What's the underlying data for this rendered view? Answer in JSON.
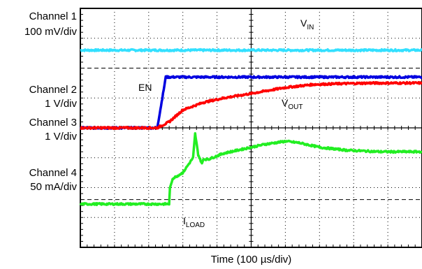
{
  "chart_data": {
    "type": "line",
    "title": "",
    "xlabel": "Time (100 µs/div)",
    "x_unit": "µs",
    "xlim": [
      0,
      1000
    ],
    "grid": true,
    "channels": [
      {
        "label_line1": "Channel 1",
        "label_line2": "100 mV/div",
        "color": "#33e0ff",
        "signal": "IN"
      },
      {
        "label_line1": "Channel 2",
        "label_line2": "1 V/div",
        "color": "#ff0000",
        "signal": "OUT"
      },
      {
        "label_line1": "Channel 3",
        "label_line2": "1 V/div",
        "color": "#0000e0",
        "signal": "EN"
      },
      {
        "label_line1": "Channel 4",
        "label_line2": "50 mA/div",
        "color": "#22ee22",
        "signal": "LOAD"
      }
    ],
    "series": [
      {
        "name": "VIN",
        "color": "#33e0ff",
        "x": [
          0,
          200,
          400,
          600,
          800,
          1000
        ],
        "y_div": [
          6.6,
          6.6,
          6.6,
          6.6,
          6.6,
          6.6
        ]
      },
      {
        "name": "EN",
        "color": "#0000e0",
        "x": [
          0,
          225,
          240,
          250,
          1000
        ],
        "y_div": [
          4.0,
          4.0,
          5.0,
          5.7,
          5.7
        ]
      },
      {
        "name": "VOUT",
        "color": "#ff0000",
        "x": [
          0,
          225,
          260,
          300,
          360,
          420,
          500,
          550,
          600,
          680,
          760,
          850,
          1000
        ],
        "y_div": [
          4.0,
          4.0,
          4.2,
          4.6,
          4.85,
          5.0,
          5.15,
          5.25,
          5.35,
          5.45,
          5.48,
          5.5,
          5.5
        ]
      },
      {
        "name": "ILOAD",
        "color": "#22ee22",
        "x": [
          0,
          260,
          262,
          270,
          285,
          300,
          330,
          336,
          345,
          356,
          360,
          375,
          420,
          480,
          540,
          600,
          640,
          700,
          780,
          880,
          1000
        ],
        "y_div": [
          1.45,
          1.45,
          1.95,
          2.3,
          2.4,
          2.5,
          3.0,
          3.8,
          3.1,
          2.8,
          2.95,
          2.95,
          3.15,
          3.3,
          3.45,
          3.55,
          3.5,
          3.35,
          3.25,
          3.2,
          3.2
        ]
      }
    ]
  }
}
